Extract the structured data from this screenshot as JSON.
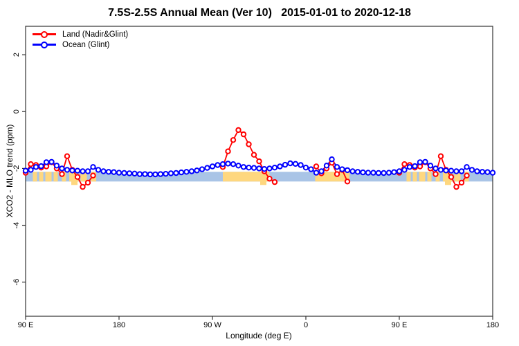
{
  "figure": {
    "title": "7.5S-2.5S Annual Mean (Ver 10)   2015-01-01 to 2020-12-18",
    "x_axis_label": "Longitude (deg E)",
    "y_axis_label": "XCO2 - MLO trend (ppm)"
  },
  "legend": {
    "items": [
      {
        "label": "Land (Nadir&Glint)",
        "color": "#ff0000"
      },
      {
        "label": "Ocean (Glint)",
        "color": "#0000ff"
      }
    ]
  },
  "colors": {
    "land_series": "#ff0000",
    "ocean_series": "#0000ff",
    "band_ocean": "#a9c4e6",
    "band_land": "#fed77f",
    "axis": "#333333",
    "text": "#000000",
    "marker_fill": "#ffffff"
  },
  "chart_data": {
    "type": "line",
    "title": "7.5S-2.5S Annual Mean (Ver 10)   2015-01-01 to 2020-12-18",
    "xlabel": "Longitude (deg E)",
    "ylabel": "XCO2 - MLO trend (ppm)",
    "xlim": [
      90,
      540
    ],
    "ylim": [
      -7.2,
      3.0
    ],
    "grid": false,
    "legend_position": "top-left-inside",
    "x_ticks": [
      {
        "pos": 90,
        "label": "90 E"
      },
      {
        "pos": 180,
        "label": "180"
      },
      {
        "pos": 270,
        "label": "90 W"
      },
      {
        "pos": 360,
        "label": "0"
      },
      {
        "pos": 450,
        "label": "90 E"
      },
      {
        "pos": 540,
        "label": "180"
      }
    ],
    "y_ticks": [
      {
        "pos": 2,
        "label": "2"
      },
      {
        "pos": 0,
        "label": "0"
      },
      {
        "pos": -2,
        "label": "-2"
      },
      {
        "pos": -4,
        "label": "-4"
      },
      {
        "pos": -6,
        "label": "-6"
      }
    ],
    "x": [
      90,
      95,
      100,
      105,
      110,
      115,
      120,
      125,
      130,
      135,
      140,
      145,
      150,
      155,
      160,
      165,
      170,
      175,
      180,
      185,
      190,
      195,
      200,
      205,
      210,
      215,
      220,
      225,
      230,
      235,
      240,
      245,
      250,
      255,
      260,
      265,
      270,
      275,
      280,
      285,
      290,
      295,
      300,
      305,
      310,
      315,
      320,
      325,
      330,
      335,
      340,
      345,
      350,
      355,
      360,
      365,
      370,
      375,
      380,
      385,
      390,
      395,
      400,
      405,
      410,
      415,
      420,
      425,
      430,
      435,
      440,
      445,
      450,
      455,
      460,
      465,
      470,
      475,
      480,
      485,
      490,
      495,
      500,
      505,
      510,
      515,
      520,
      525,
      530,
      535,
      540
    ],
    "series": [
      {
        "name": "Land (Nadir&Glint)",
        "color": "#ff0000",
        "values": [
          -2.15,
          -1.85,
          -1.88,
          -1.97,
          -1.93,
          -1.78,
          -2.0,
          -2.2,
          -1.57,
          -2.05,
          -2.3,
          -2.65,
          -2.5,
          -2.25,
          null,
          null,
          null,
          null,
          null,
          null,
          null,
          null,
          null,
          null,
          null,
          null,
          null,
          null,
          null,
          null,
          null,
          null,
          null,
          null,
          null,
          null,
          null,
          null,
          -1.95,
          -1.4,
          -1.0,
          -0.65,
          -0.8,
          -1.15,
          -1.52,
          -1.75,
          -2.1,
          -2.36,
          -2.48,
          null,
          null,
          null,
          null,
          null,
          null,
          null,
          -1.93,
          -2.17,
          -2.0,
          -1.8,
          -2.2,
          -2.05,
          -2.46,
          null,
          null,
          null,
          null,
          null,
          null,
          null,
          null,
          null,
          -2.15,
          -1.85,
          -1.88,
          -1.97,
          -1.93,
          -1.78,
          -2.0,
          -2.2,
          -1.57,
          -2.05,
          -2.3,
          -2.65,
          -2.5,
          -2.25,
          null,
          null,
          null,
          null,
          null
        ]
      },
      {
        "name": "Ocean (Glint)",
        "color": "#0000ff",
        "values": [
          -2.08,
          -2.05,
          -1.95,
          -1.92,
          -1.78,
          -1.77,
          -1.9,
          -2.0,
          -2.05,
          -2.07,
          -2.08,
          -2.1,
          -2.1,
          -1.95,
          -2.05,
          -2.1,
          -2.12,
          -2.13,
          -2.15,
          -2.16,
          -2.17,
          -2.18,
          -2.2,
          -2.2,
          -2.21,
          -2.21,
          -2.2,
          -2.19,
          -2.17,
          -2.16,
          -2.14,
          -2.12,
          -2.1,
          -2.07,
          -2.03,
          -1.98,
          -1.93,
          -1.88,
          -1.85,
          -1.83,
          -1.85,
          -1.9,
          -1.95,
          -1.97,
          -1.98,
          -2.0,
          -2.02,
          -2.0,
          -1.97,
          -1.93,
          -1.87,
          -1.82,
          -1.84,
          -1.88,
          -1.97,
          -2.03,
          -2.15,
          -2.1,
          -1.9,
          -1.68,
          -1.95,
          -2.03,
          -2.06,
          -2.1,
          -2.12,
          -2.14,
          -2.15,
          -2.15,
          -2.16,
          -2.16,
          -2.15,
          -2.13,
          -2.1,
          -2.05,
          -1.95,
          -1.92,
          -1.78,
          -1.77,
          -1.9,
          -2.0,
          -2.05,
          -2.07,
          -2.08,
          -2.1,
          -2.1,
          -1.95,
          -2.05,
          -2.1,
          -2.12,
          -2.13,
          -2.15
        ]
      }
    ],
    "band": {
      "description": "surface-type strip: ocean=light blue, land=orange",
      "y_top": -2.12,
      "y_bottom": -2.46,
      "ocean_color": "#a9c4e6",
      "land_color": "#fed77f",
      "land_segments": [
        [
          97,
          101
        ],
        [
          103,
          107
        ],
        [
          109,
          115
        ],
        [
          117,
          121
        ],
        [
          125,
          129
        ],
        [
          132,
          141
        ],
        [
          143,
          149
        ],
        [
          153,
          158
        ],
        [
          280,
          325
        ],
        [
          369,
          402
        ],
        [
          457,
          461
        ],
        [
          463,
          467
        ],
        [
          469,
          475
        ],
        [
          477,
          481
        ],
        [
          485,
          489
        ],
        [
          492,
          501
        ],
        [
          503,
          509
        ],
        [
          513,
          517
        ]
      ],
      "land_deep_segments": [
        [
          134,
          140
        ],
        [
          316,
          322
        ],
        [
          494,
          500
        ]
      ]
    }
  }
}
